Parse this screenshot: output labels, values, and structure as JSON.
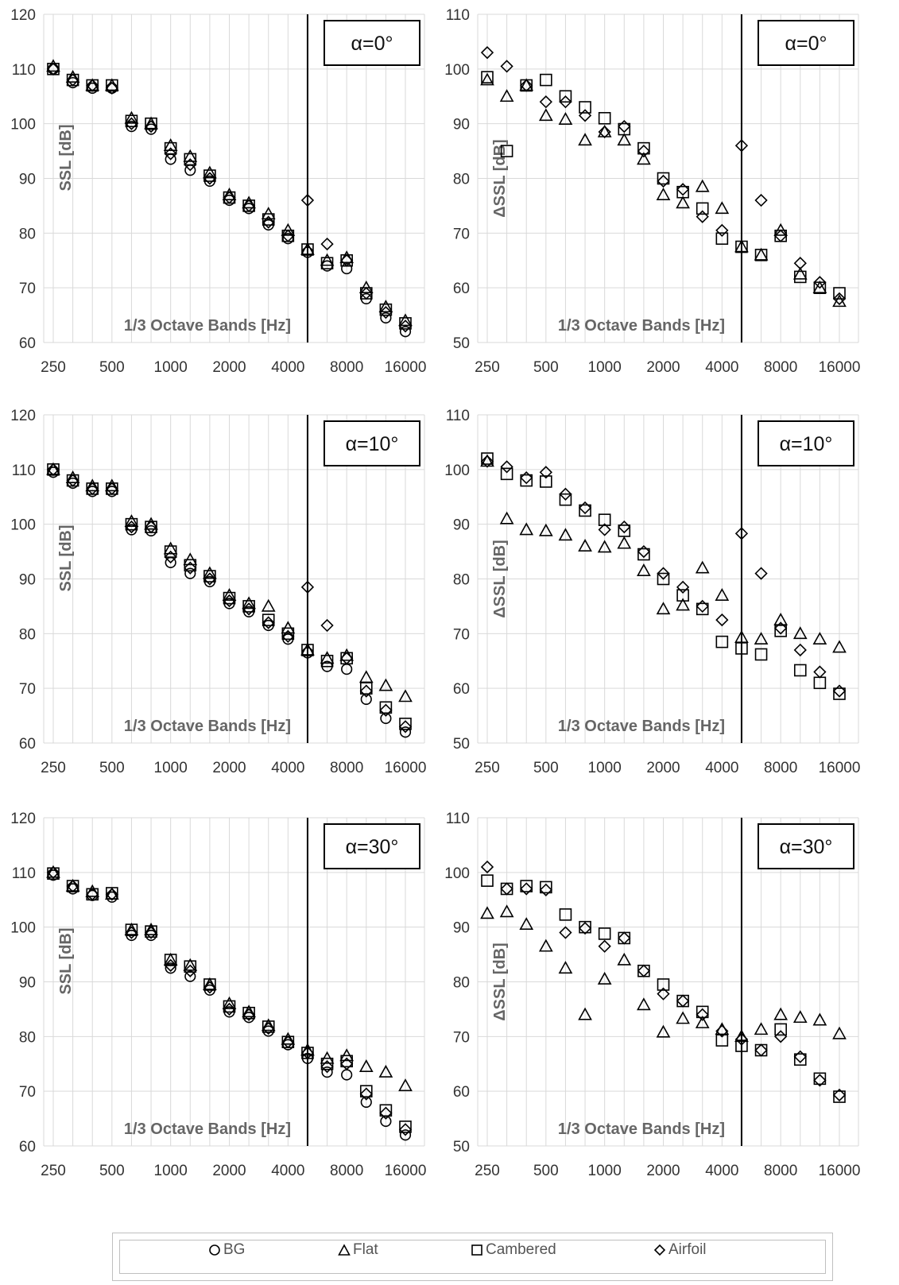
{
  "chart_data": [
    {
      "id": "ssl-a0",
      "type": "scatter",
      "annotation": "α=0°",
      "ylabel": "SSL [dB]",
      "xlabel": "1/3 Octave Bands [Hz]",
      "ylim": [
        60,
        120
      ],
      "yticks": [
        60,
        70,
        80,
        90,
        100,
        110,
        120
      ],
      "grid": true,
      "vline": 5000,
      "series": [
        {
          "name": "BG",
          "marker": "circle",
          "x": [
            250,
            315,
            400,
            500,
            630,
            800,
            1000,
            1250,
            1600,
            2000,
            2500,
            3150,
            4000,
            5000,
            6300,
            8000,
            10000,
            12500,
            16000
          ],
          "values": [
            110,
            107.5,
            106.5,
            106.5,
            99.5,
            99,
            93.5,
            91.5,
            89.5,
            86,
            84.5,
            81.5,
            79,
            76.5,
            74,
            73.5,
            68,
            64.5,
            62
          ]
        },
        {
          "name": "Flat",
          "marker": "triangle",
          "x": [
            250,
            315,
            400,
            500,
            630,
            800,
            1000,
            1250,
            1600,
            2000,
            2500,
            3150,
            4000,
            5000,
            6300,
            8000,
            10000,
            12500,
            16000
          ],
          "values": [
            110.5,
            108.5,
            107,
            107,
            101,
            100,
            96,
            94,
            91,
            87,
            85.5,
            83.5,
            80.5,
            77,
            75,
            75.5,
            70,
            66.5,
            64
          ]
        },
        {
          "name": "Cambered",
          "marker": "square",
          "x": [
            250,
            315,
            400,
            500,
            630,
            800,
            1000,
            1250,
            1600,
            2000,
            2500,
            3150,
            4000,
            5000,
            6300,
            8000,
            10000,
            12500,
            16000
          ],
          "values": [
            110,
            108,
            107,
            107,
            100.5,
            100,
            95.5,
            93.5,
            90.5,
            86.5,
            85,
            82.5,
            79.5,
            77,
            74.5,
            75,
            69,
            66,
            63.5
          ]
        },
        {
          "name": "Airfoil",
          "marker": "diamond",
          "x": [
            250,
            315,
            400,
            500,
            630,
            800,
            1000,
            1250,
            1600,
            2000,
            2500,
            3150,
            4000,
            5000,
            6300,
            8000,
            10000,
            12500,
            16000
          ],
          "values": [
            110,
            108,
            107,
            106.5,
            100,
            99.5,
            94.5,
            92.5,
            90,
            86.5,
            85,
            82,
            79.5,
            86,
            78,
            75,
            69,
            65.5,
            63
          ]
        }
      ]
    },
    {
      "id": "dssl-a0",
      "type": "scatter",
      "annotation": "α=0°",
      "ylabel": "ΔSSL [dB]",
      "xlabel": "1/3 Octave Bands [Hz]",
      "ylim": [
        50,
        110
      ],
      "yticks": [
        50,
        60,
        70,
        80,
        90,
        100,
        110
      ],
      "grid": true,
      "vline": 5000,
      "series": [
        {
          "name": "Flat",
          "marker": "triangle",
          "x": [
            250,
            315,
            400,
            500,
            630,
            800,
            1000,
            1250,
            1600,
            2000,
            2500,
            3150,
            4000,
            5000,
            6300,
            8000,
            10000,
            12500,
            16000
          ],
          "values": [
            98,
            95,
            97,
            91.5,
            90.8,
            87,
            88.5,
            87,
            83.5,
            77,
            75.5,
            78.5,
            74.5,
            67.5,
            66,
            70.5,
            62.5,
            60,
            57.5
          ]
        },
        {
          "name": "Cambered",
          "marker": "square",
          "x": [
            250,
            315,
            400,
            500,
            630,
            800,
            1000,
            1250,
            1600,
            2000,
            2500,
            3150,
            4000,
            5000,
            6300,
            8000,
            10000,
            12500,
            16000
          ],
          "values": [
            98.5,
            85,
            97,
            98,
            95,
            93,
            91,
            89,
            85.5,
            80,
            77.5,
            74.5,
            69,
            67.5,
            66,
            69.5,
            62,
            60,
            59
          ]
        },
        {
          "name": "Airfoil",
          "marker": "diamond",
          "x": [
            250,
            315,
            400,
            500,
            630,
            800,
            1000,
            1250,
            1600,
            2000,
            2500,
            3150,
            4000,
            5000,
            6300,
            8000,
            10000,
            12500,
            16000
          ],
          "values": [
            103,
            100.5,
            97,
            94,
            94,
            91.5,
            88.5,
            89.5,
            85,
            79.5,
            78,
            73,
            70.5,
            86,
            76,
            69.5,
            64.5,
            61,
            58
          ]
        }
      ]
    },
    {
      "id": "ssl-a10",
      "type": "scatter",
      "annotation": "α=10°",
      "ylabel": "SSL [dB]",
      "xlabel": "1/3 Octave Bands [Hz]",
      "ylim": [
        60,
        120
      ],
      "yticks": [
        60,
        70,
        80,
        90,
        100,
        110,
        120
      ],
      "grid": true,
      "vline": 5000,
      "series": [
        {
          "name": "BG",
          "marker": "circle",
          "x": [
            250,
            315,
            400,
            500,
            630,
            800,
            1000,
            1250,
            1600,
            2000,
            2500,
            3150,
            4000,
            5000,
            6300,
            8000,
            10000,
            12500,
            16000
          ],
          "values": [
            109.5,
            107.5,
            106,
            106,
            99,
            98.8,
            93,
            91,
            89.5,
            85.5,
            84,
            81.5,
            79,
            76.5,
            74,
            73.5,
            68,
            64.5,
            62
          ]
        },
        {
          "name": "Flat",
          "marker": "triangle",
          "x": [
            250,
            315,
            400,
            500,
            630,
            800,
            1000,
            1250,
            1600,
            2000,
            2500,
            3150,
            4000,
            5000,
            6300,
            8000,
            10000,
            12500,
            16000
          ],
          "values": [
            110,
            108.5,
            107,
            107,
            100.5,
            100,
            95.5,
            93.5,
            91,
            87,
            85.5,
            85,
            81,
            77,
            75.5,
            76,
            72,
            70.5,
            68.5
          ]
        },
        {
          "name": "Cambered",
          "marker": "square",
          "x": [
            250,
            315,
            400,
            500,
            630,
            800,
            1000,
            1250,
            1600,
            2000,
            2500,
            3150,
            4000,
            5000,
            6300,
            8000,
            10000,
            12500,
            16000
          ],
          "values": [
            110,
            108,
            106.5,
            106.5,
            100,
            99.5,
            95,
            92.5,
            90.5,
            86.5,
            85,
            82.5,
            80,
            77,
            75,
            75.5,
            70,
            66.5,
            63.5
          ]
        },
        {
          "name": "Airfoil",
          "marker": "diamond",
          "x": [
            250,
            315,
            400,
            500,
            630,
            800,
            1000,
            1250,
            1600,
            2000,
            2500,
            3150,
            4000,
            5000,
            6300,
            8000,
            10000,
            12500,
            16000
          ],
          "values": [
            110,
            108,
            106.5,
            106.5,
            99.5,
            99.5,
            94,
            92,
            90,
            86,
            84.5,
            82,
            79.5,
            88.5,
            81.5,
            75.5,
            69.5,
            66,
            63
          ]
        }
      ]
    },
    {
      "id": "dssl-a10",
      "type": "scatter",
      "annotation": "α=10°",
      "ylabel": "ΔSSL [dB]",
      "xlabel": "1/3 Octave Bands [Hz]",
      "ylim": [
        50,
        110
      ],
      "yticks": [
        50,
        60,
        70,
        80,
        90,
        100,
        110
      ],
      "grid": true,
      "vline": 5000,
      "series": [
        {
          "name": "Flat",
          "marker": "triangle",
          "x": [
            250,
            315,
            400,
            500,
            630,
            800,
            1000,
            1250,
            1600,
            2000,
            2500,
            3150,
            4000,
            5000,
            6300,
            8000,
            10000,
            12500,
            16000
          ],
          "values": [
            101.5,
            91,
            89,
            88.8,
            88,
            86,
            85.8,
            86.5,
            81.5,
            74.5,
            75.2,
            82,
            77,
            69.3,
            69,
            72.5,
            70,
            69,
            67.5
          ]
        },
        {
          "name": "Cambered",
          "marker": "square",
          "x": [
            250,
            315,
            400,
            500,
            630,
            800,
            1000,
            1250,
            1600,
            2000,
            2500,
            3150,
            4000,
            5000,
            6300,
            8000,
            10000,
            12500,
            16000
          ],
          "values": [
            102,
            99.2,
            98,
            97.8,
            94.5,
            92.5,
            90.8,
            88.8,
            84.5,
            80,
            77,
            74.5,
            68.5,
            67.3,
            66.2,
            70.5,
            63.3,
            61,
            59
          ]
        },
        {
          "name": "Airfoil",
          "marker": "diamond",
          "x": [
            250,
            315,
            400,
            500,
            630,
            800,
            1000,
            1250,
            1600,
            2000,
            2500,
            3150,
            4000,
            5000,
            6300,
            8000,
            10000,
            12500,
            16000
          ],
          "values": [
            101.5,
            100.5,
            98.5,
            99.5,
            95.5,
            93,
            89,
            89.5,
            85,
            81,
            78.5,
            75,
            72.5,
            88.3,
            81,
            71,
            67,
            63,
            59.5
          ]
        }
      ]
    },
    {
      "id": "ssl-a30",
      "type": "scatter",
      "annotation": "α=30°",
      "ylabel": "SSL [dB]",
      "xlabel": "1/3 Octave Bands [Hz]",
      "ylim": [
        60,
        120
      ],
      "yticks": [
        60,
        70,
        80,
        90,
        100,
        110,
        120
      ],
      "grid": true,
      "vline": 5000,
      "series": [
        {
          "name": "BG",
          "marker": "circle",
          "x": [
            250,
            315,
            400,
            500,
            630,
            800,
            1000,
            1250,
            1600,
            2000,
            2500,
            3150,
            4000,
            5000,
            6300,
            8000,
            10000,
            12500,
            16000
          ],
          "values": [
            109.5,
            107,
            105.8,
            105.5,
            98.5,
            98.5,
            92.5,
            91,
            88.5,
            84.5,
            83.5,
            81,
            78.5,
            76,
            73.5,
            73,
            68,
            64.5,
            62
          ]
        },
        {
          "name": "Flat",
          "marker": "triangle",
          "x": [
            250,
            315,
            400,
            500,
            630,
            800,
            1000,
            1250,
            1600,
            2000,
            2500,
            3150,
            4000,
            5000,
            6300,
            8000,
            10000,
            12500,
            16000
          ],
          "values": [
            110,
            107.5,
            106.5,
            106,
            99.5,
            99.5,
            94,
            93,
            89.5,
            86,
            84.5,
            82,
            79.5,
            77.5,
            76,
            76.5,
            74.5,
            73.5,
            71
          ]
        },
        {
          "name": "Cambered",
          "marker": "square",
          "x": [
            250,
            315,
            400,
            500,
            630,
            800,
            1000,
            1250,
            1600,
            2000,
            2500,
            3150,
            4000,
            5000,
            6300,
            8000,
            10000,
            12500,
            16000
          ],
          "values": [
            109.8,
            107.5,
            106,
            106.2,
            99.5,
            99.2,
            94,
            92.8,
            89.5,
            85.5,
            84.3,
            81.8,
            79,
            77,
            75,
            75.5,
            70,
            66.5,
            63.5
          ]
        },
        {
          "name": "Airfoil",
          "marker": "diamond",
          "x": [
            250,
            315,
            400,
            500,
            630,
            800,
            1000,
            1250,
            1600,
            2000,
            2500,
            3150,
            4000,
            5000,
            6300,
            8000,
            10000,
            12500,
            16000
          ],
          "values": [
            110,
            107.5,
            106,
            106,
            99,
            99,
            93,
            92,
            89,
            85,
            84,
            81.5,
            79,
            77,
            74.5,
            75,
            69.5,
            66,
            63
          ]
        }
      ]
    },
    {
      "id": "dssl-a30",
      "type": "scatter",
      "annotation": "α=30°",
      "ylabel": "ΔSSL [dB]",
      "xlabel": "1/3 Octave Bands [Hz]",
      "ylim": [
        50,
        110
      ],
      "yticks": [
        50,
        60,
        70,
        80,
        90,
        100,
        110
      ],
      "grid": true,
      "vline": 5000,
      "series": [
        {
          "name": "Flat",
          "marker": "triangle",
          "x": [
            250,
            315,
            400,
            500,
            630,
            800,
            1000,
            1250,
            1600,
            2000,
            2500,
            3150,
            4000,
            5000,
            6300,
            8000,
            10000,
            12500,
            16000
          ],
          "values": [
            92.5,
            92.8,
            90.5,
            86.5,
            82.5,
            74,
            80.5,
            84,
            75.8,
            70.8,
            73.3,
            72.5,
            71.3,
            70,
            71.3,
            74,
            73.5,
            73,
            70.5
          ]
        },
        {
          "name": "Cambered",
          "marker": "square",
          "x": [
            250,
            315,
            400,
            500,
            630,
            800,
            1000,
            1250,
            1600,
            2000,
            2500,
            3150,
            4000,
            5000,
            6300,
            8000,
            10000,
            12500,
            16000
          ],
          "values": [
            98.5,
            97,
            97.5,
            97.3,
            92.3,
            90,
            88.8,
            88,
            82,
            79.5,
            76.5,
            74.5,
            69.3,
            68.3,
            67.5,
            71.3,
            65.8,
            62.3,
            59
          ]
        },
        {
          "name": "Airfoil",
          "marker": "diamond",
          "x": [
            250,
            315,
            400,
            500,
            630,
            800,
            1000,
            1250,
            1600,
            2000,
            2500,
            3150,
            4000,
            5000,
            6300,
            8000,
            10000,
            12500,
            16000
          ],
          "values": [
            101,
            97,
            97,
            96.8,
            89,
            89.8,
            86.5,
            88,
            82,
            77.8,
            76.5,
            74,
            71,
            69.5,
            67.5,
            70,
            66.3,
            62,
            59.3
          ]
        }
      ]
    }
  ],
  "xtick_labels": [
    "250",
    "500",
    "1000",
    "2000",
    "4000",
    "8000",
    "16000"
  ],
  "legend": {
    "items": [
      {
        "label": "BG",
        "icon": "circle-marker-icon"
      },
      {
        "label": "Flat",
        "icon": "triangle-marker-icon"
      },
      {
        "label": "Cambered",
        "icon": "square-marker-icon"
      },
      {
        "label": "Airfoil",
        "icon": "diamond-marker-icon"
      }
    ]
  },
  "colors": {
    "marker_stroke": "#000000",
    "grid": "#d9d9d9",
    "tick_text": "#333333",
    "axis_title": "#666666"
  }
}
